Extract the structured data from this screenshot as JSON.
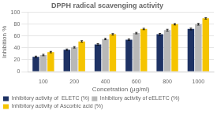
{
  "chart_data": {
    "type": "bar",
    "title": "DPPH radical scavenging activity",
    "xlabel": "Concetration (μg/ml)",
    "ylabel": "Inhibition %",
    "categories": [
      100,
      200,
      400,
      600,
      800,
      1000
    ],
    "series": [
      {
        "name": "Inhibitory activity of  ELETC (%)",
        "color": "#1e3264",
        "values": [
          25,
          37,
          46,
          54,
          63,
          72
        ],
        "errors": [
          1.2,
          1.2,
          1.2,
          1.2,
          1.5,
          1.5
        ]
      },
      {
        "name": "Inhibitory activity of eELETC (%)",
        "color": "#b8b8b8",
        "values": [
          28,
          41,
          55,
          65,
          70,
          80
        ],
        "errors": [
          1.2,
          1.2,
          1.2,
          1.2,
          1.5,
          1.5
        ]
      },
      {
        "name": "Inhibitory activity of Ascorbic acid (%)",
        "color": "#f5c400",
        "values": [
          33,
          51,
          63,
          72,
          80,
          90
        ],
        "errors": [
          1.2,
          1.2,
          1.2,
          1.2,
          1.2,
          1.2
        ]
      }
    ],
    "ylim": [
      0,
      100
    ],
    "yticks": [
      0,
      20,
      40,
      60,
      80,
      100
    ],
    "grid": true,
    "legend": "bottom"
  }
}
